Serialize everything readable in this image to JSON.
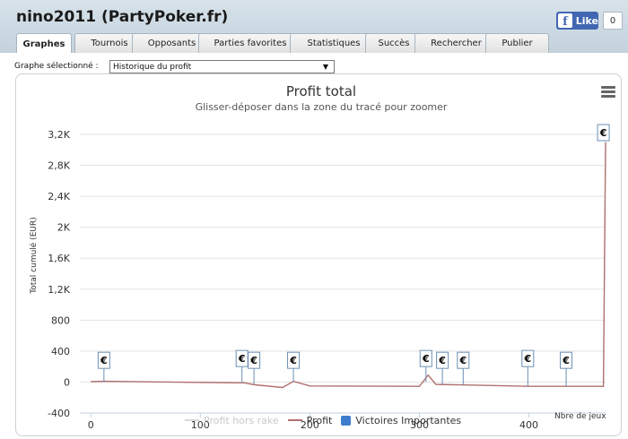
{
  "header": {
    "title": "nino2011 (PartyPoker.fr)",
    "facebook": {
      "icon": "facebook-f-icon",
      "like_label": "Like",
      "count": "0"
    }
  },
  "tabs": [
    {
      "label": "Graphes",
      "active": true
    },
    {
      "label": "Tournois",
      "active": false
    },
    {
      "label": "Opposants",
      "active": false
    },
    {
      "label": "Parties favorites",
      "active": false
    },
    {
      "label": "Statistiques",
      "active": false
    },
    {
      "label": "Succès",
      "active": false
    },
    {
      "label": "Rechercher",
      "active": false
    },
    {
      "label": "Publier",
      "active": false
    }
  ],
  "graph_selector": {
    "label": "Graphe sélectionné :",
    "value": "Historique du profit",
    "icon": "dropdown-arrow-icon"
  },
  "chart_menu_icon": "hamburger-menu-icon",
  "chart_data": {
    "type": "line",
    "title": "Profit total",
    "subtitle": "Glisser-déposer dans la zone du tracé pour zoomer",
    "ylabel": "Total cumulé (EUR)",
    "xlabel": "Nbre de jeux",
    "ylim": [
      -400,
      3200
    ],
    "xlim": [
      -10,
      470
    ],
    "y_ticks": [
      {
        "value": -400,
        "label": "-400"
      },
      {
        "value": 0,
        "label": "0"
      },
      {
        "value": 400,
        "label": "400"
      },
      {
        "value": 800,
        "label": "800"
      },
      {
        "value": 1200,
        "label": "1,2K"
      },
      {
        "value": 1600,
        "label": "1,6K"
      },
      {
        "value": 2000,
        "label": "2K"
      },
      {
        "value": 2400,
        "label": "2,4K"
      },
      {
        "value": 2800,
        "label": "2,8K"
      },
      {
        "value": 3200,
        "label": "3,2K"
      }
    ],
    "x_ticks": [
      {
        "value": 0,
        "label": "0"
      },
      {
        "value": 100,
        "label": "100"
      },
      {
        "value": 200,
        "label": "200"
      },
      {
        "value": 300,
        "label": "300"
      },
      {
        "value": 400,
        "label": "400"
      }
    ],
    "grid": true,
    "legend_position": "bottom",
    "series": [
      {
        "name": "Profit hors rake",
        "color": "#d9d9d9",
        "points": [
          [
            0,
            5
          ],
          [
            12,
            10
          ],
          [
            60,
            2
          ],
          [
            140,
            -10
          ],
          [
            150,
            -35
          ],
          [
            175,
            -70
          ],
          [
            185,
            10
          ],
          [
            200,
            -50
          ],
          [
            300,
            -55
          ],
          [
            308,
            90
          ],
          [
            315,
            -30
          ],
          [
            400,
            -55
          ],
          [
            468,
            -55
          ],
          [
            470,
            3100
          ]
        ]
      },
      {
        "name": "Profit",
        "color": "#b0706f",
        "points": [
          [
            0,
            5
          ],
          [
            12,
            10
          ],
          [
            60,
            2
          ],
          [
            140,
            -10
          ],
          [
            150,
            -35
          ],
          [
            175,
            -70
          ],
          [
            185,
            10
          ],
          [
            200,
            -50
          ],
          [
            300,
            -55
          ],
          [
            308,
            90
          ],
          [
            315,
            -30
          ],
          [
            400,
            -55
          ],
          [
            468,
            -55
          ],
          [
            470,
            3100
          ]
        ]
      }
    ],
    "flags": {
      "name": "Victoires Importantes",
      "color": "#3d7dcc",
      "symbol": "€",
      "x": [
        12,
        138,
        149,
        185,
        306,
        321,
        340,
        399,
        434,
        468
      ]
    }
  }
}
